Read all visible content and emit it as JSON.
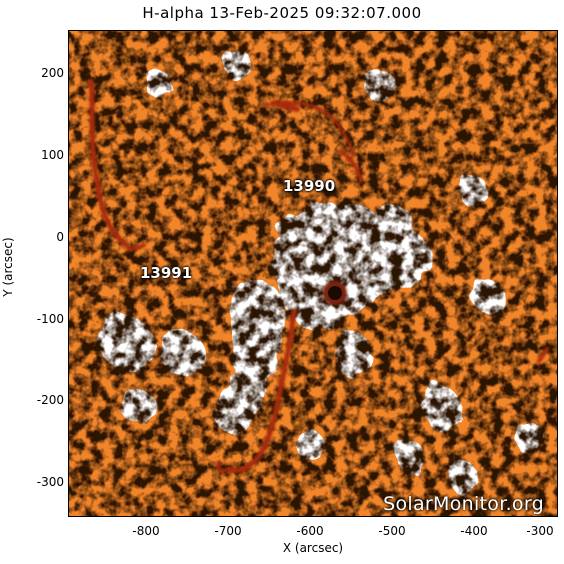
{
  "title": "H-alpha 13-Feb-2025 09:32:07.000",
  "x_axis": {
    "label": "X (arcsec)",
    "ticks": [
      "-800",
      "-700",
      "-600",
      "-500",
      "-400",
      "-300"
    ]
  },
  "y_axis": {
    "label": "Y (arcsec)",
    "ticks": [
      "200",
      "100",
      "0",
      "-100",
      "-200",
      "-300"
    ]
  },
  "active_regions": [
    {
      "id": "13990"
    },
    {
      "id": "13991"
    }
  ],
  "watermark": "SolarMonitor.org",
  "colors": {
    "chromosphere_base": "#f0852a",
    "plage": "#ffffff",
    "filament": "#a82a08",
    "sunspot": "#1a0a04"
  }
}
